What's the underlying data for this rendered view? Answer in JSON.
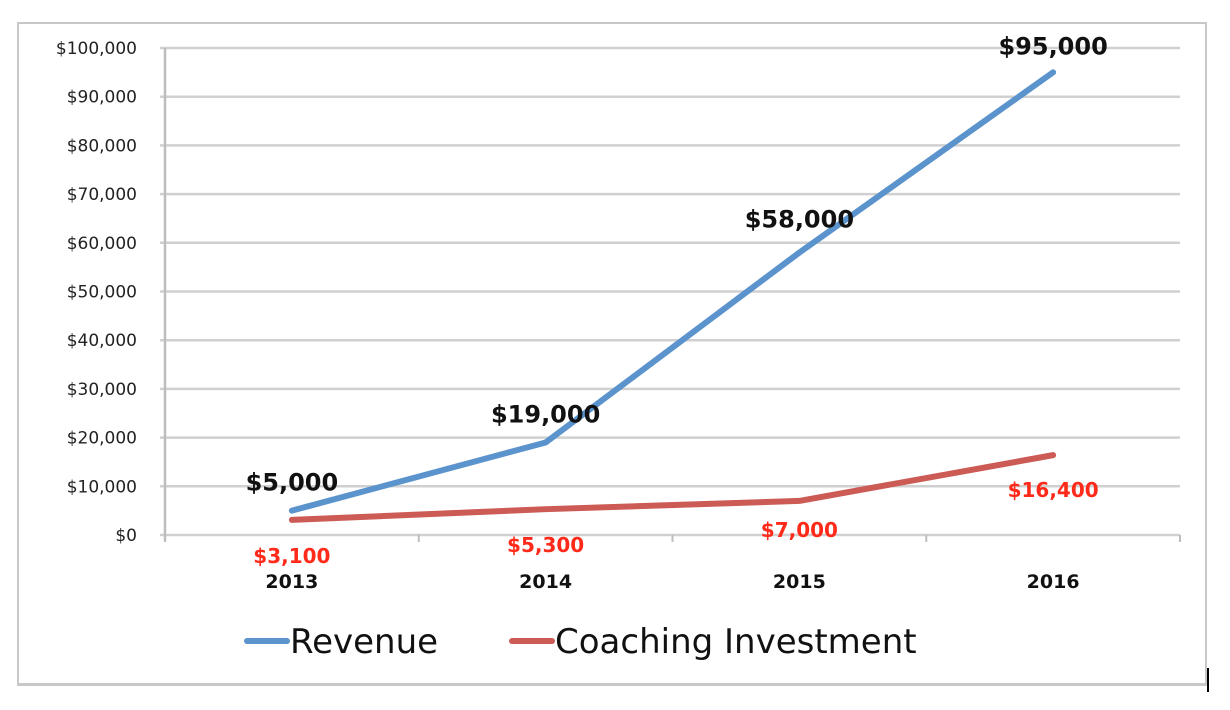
{
  "chart_data": {
    "type": "line",
    "title": "",
    "xlabel": "",
    "ylabel": "",
    "categories": [
      "2013",
      "2014",
      "2015",
      "2016"
    ],
    "series": [
      {
        "name": "Revenue",
        "values": [
          5000,
          19000,
          58000,
          95000
        ],
        "color": "#5b93cc",
        "labels": [
          "$5,000",
          "$19,000",
          "$58,000",
          "$95,000"
        ],
        "label_color": "#111111"
      },
      {
        "name": "Coaching Investment",
        "values": [
          3100,
          5300,
          7000,
          16400
        ],
        "color": "#cc5a55",
        "labels": [
          "$3,100",
          "$5,300",
          "$7,000",
          "$16,400"
        ],
        "label_color": "#ff2a1a"
      }
    ],
    "ylim": [
      0,
      100000
    ],
    "y_ticks": [
      "$0",
      "$10,000",
      "$20,000",
      "$30,000",
      "$40,000",
      "$50,000",
      "$60,000",
      "$70,000",
      "$80,000",
      "$90,000",
      "$100,000"
    ],
    "y_tick_values": [
      0,
      10000,
      20000,
      30000,
      40000,
      50000,
      60000,
      70000,
      80000,
      90000,
      100000
    ],
    "grid": true,
    "legend_position": "bottom"
  },
  "legend": {
    "items": [
      {
        "label": "Revenue",
        "color": "#5b93cc"
      },
      {
        "label": "Coaching Investment",
        "color": "#cc5a55"
      }
    ]
  },
  "colors": {
    "grid": "#d0d0d0",
    "axis": "#bdbdbd",
    "frame": "#c8c8c8"
  }
}
